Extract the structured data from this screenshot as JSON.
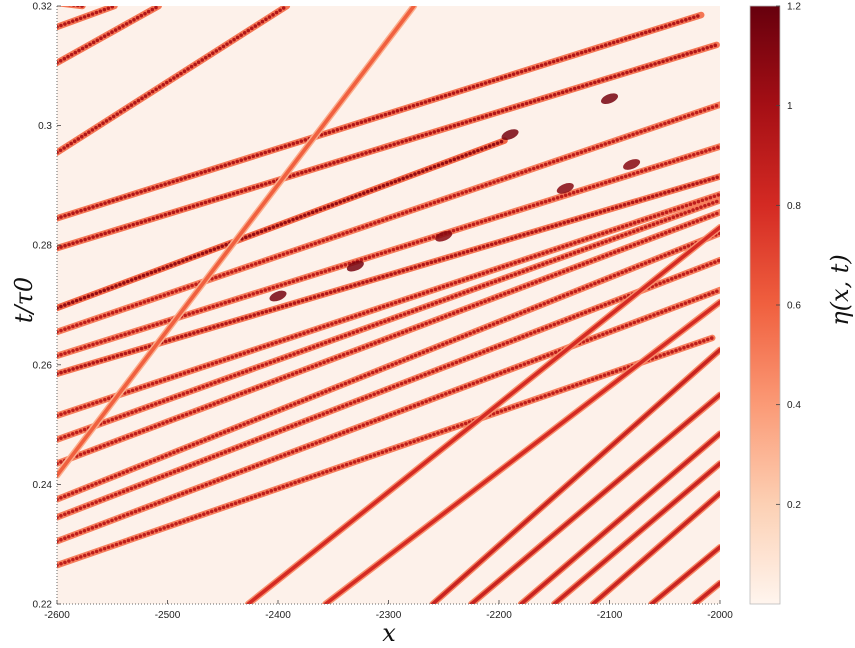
{
  "chart_data": {
    "type": "heatmap",
    "title": "",
    "xlabel": "x",
    "ylabel": "t/τ0",
    "colorbar_label": "η(x, t)",
    "xlim": [
      -2600,
      -2000
    ],
    "ylim": [
      0.22,
      0.32
    ],
    "x_ticks": [
      -2600,
      -2500,
      -2400,
      -2300,
      -2200,
      -2100,
      -2000
    ],
    "x_tick_labels": [
      "-2600",
      "-2500",
      "-2400",
      "-2300",
      "-2200",
      "-2100",
      "-2000"
    ],
    "y_ticks": [
      0.22,
      0.24,
      0.26,
      0.28,
      0.3,
      0.32
    ],
    "y_tick_labels": [
      "0.22",
      "0.24",
      "0.26",
      "0.28",
      "0.3",
      "0.32"
    ],
    "colorbar_range": [
      0,
      1.2
    ],
    "colorbar_ticks": [
      0.2,
      0.4,
      0.6,
      0.8,
      1,
      1.2
    ],
    "colorbar_tick_labels": [
      "0.2",
      "0.4",
      "0.6",
      "0.8",
      "1",
      "1.2"
    ],
    "colormap": [
      "#fff5ee",
      "#fcd0b4",
      "#fb9a76",
      "#f0603f",
      "#d42a23",
      "#a50f15",
      "#67000d"
    ],
    "grid": false,
    "background_color": "#fdf1ea",
    "soliton_tracks": [
      {
        "x0": -2600,
        "t0": 0.3205,
        "x1": -2577,
        "t1": 0.32,
        "amplitude": 0.95
      },
      {
        "x0": -2600,
        "t0": 0.3165,
        "x1": -2548,
        "t1": 0.32,
        "amplitude": 0.95
      },
      {
        "x0": -2600,
        "t0": 0.3105,
        "x1": -2508,
        "t1": 0.32,
        "amplitude": 0.95
      },
      {
        "x0": -2600,
        "t0": 0.2955,
        "x1": -2392,
        "t1": 0.32,
        "amplitude": 0.95
      },
      {
        "x0": -2600,
        "t0": 0.2845,
        "x1": -2017,
        "t1": 0.3185,
        "amplitude": 0.95
      },
      {
        "x0": -2600,
        "t0": 0.2795,
        "x1": -2003,
        "t1": 0.3135,
        "amplitude": 0.95
      },
      {
        "x0": -2600,
        "t0": 0.2695,
        "x1": -2195,
        "t1": 0.2975,
        "amplitude": 1.05
      },
      {
        "x0": -2600,
        "t0": 0.2655,
        "x1": -2000,
        "t1": 0.3035,
        "amplitude": 0.9
      },
      {
        "x0": -2600,
        "t0": 0.2615,
        "x1": -2000,
        "t1": 0.2965,
        "amplitude": 0.9
      },
      {
        "x0": -2600,
        "t0": 0.2585,
        "x1": -2000,
        "t1": 0.2915,
        "amplitude": 0.95
      },
      {
        "x0": -2600,
        "t0": 0.2515,
        "x1": -2000,
        "t1": 0.2885,
        "amplitude": 0.9
      },
      {
        "x0": -2600,
        "t0": 0.2475,
        "x1": -2000,
        "t1": 0.2875,
        "amplitude": 0.9
      },
      {
        "x0": -2600,
        "t0": 0.2435,
        "x1": -2000,
        "t1": 0.2855,
        "amplitude": 0.9
      },
      {
        "x0": -2600,
        "t0": 0.2375,
        "x1": -2000,
        "t1": 0.282,
        "amplitude": 0.9
      },
      {
        "x0": -2600,
        "t0": 0.2345,
        "x1": -2000,
        "t1": 0.2775,
        "amplitude": 0.9
      },
      {
        "x0": -2600,
        "t0": 0.2305,
        "x1": -2000,
        "t1": 0.2725,
        "amplitude": 0.9
      },
      {
        "x0": -2600,
        "t0": 0.2265,
        "x1": -2007,
        "t1": 0.2645,
        "amplitude": 0.9
      },
      {
        "x0": -2600,
        "t0": 0.2415,
        "x1": -2277,
        "t1": 0.32,
        "amplitude": 0.6
      },
      {
        "x0": -2427,
        "t0": 0.22,
        "x1": -2000,
        "t1": 0.283,
        "amplitude": 0.8
      },
      {
        "x0": -2357,
        "t0": 0.22,
        "x1": -2000,
        "t1": 0.2705,
        "amplitude": 0.8
      },
      {
        "x0": -2260,
        "t0": 0.22,
        "x1": -2000,
        "t1": 0.2625,
        "amplitude": 0.85
      },
      {
        "x0": -2225,
        "t0": 0.22,
        "x1": -2000,
        "t1": 0.255,
        "amplitude": 0.85
      },
      {
        "x0": -2180,
        "t0": 0.22,
        "x1": -2000,
        "t1": 0.2485,
        "amplitude": 0.85
      },
      {
        "x0": -2150,
        "t0": 0.22,
        "x1": -2000,
        "t1": 0.2435,
        "amplitude": 0.85
      },
      {
        "x0": -2115,
        "t0": 0.22,
        "x1": -2000,
        "t1": 0.2385,
        "amplitude": 0.85
      },
      {
        "x0": -2062,
        "t0": 0.22,
        "x1": -2000,
        "t1": 0.2295,
        "amplitude": 0.85
      },
      {
        "x0": -2023,
        "t0": 0.22,
        "x1": -2000,
        "t1": 0.2235,
        "amplitude": 0.85
      }
    ],
    "interaction_hotspots": [
      {
        "x": -2400,
        "t": 0.2715,
        "amplitude": 1.15
      },
      {
        "x": -2330,
        "t": 0.2765,
        "amplitude": 1.15
      },
      {
        "x": -2250,
        "t": 0.2815,
        "amplitude": 1.1
      },
      {
        "x": -2190,
        "t": 0.2985,
        "amplitude": 1.15
      },
      {
        "x": -2140,
        "t": 0.2895,
        "amplitude": 1.1
      },
      {
        "x": -2100,
        "t": 0.3045,
        "amplitude": 1.15
      },
      {
        "x": -2080,
        "t": 0.2935,
        "amplitude": 1.1
      }
    ]
  }
}
